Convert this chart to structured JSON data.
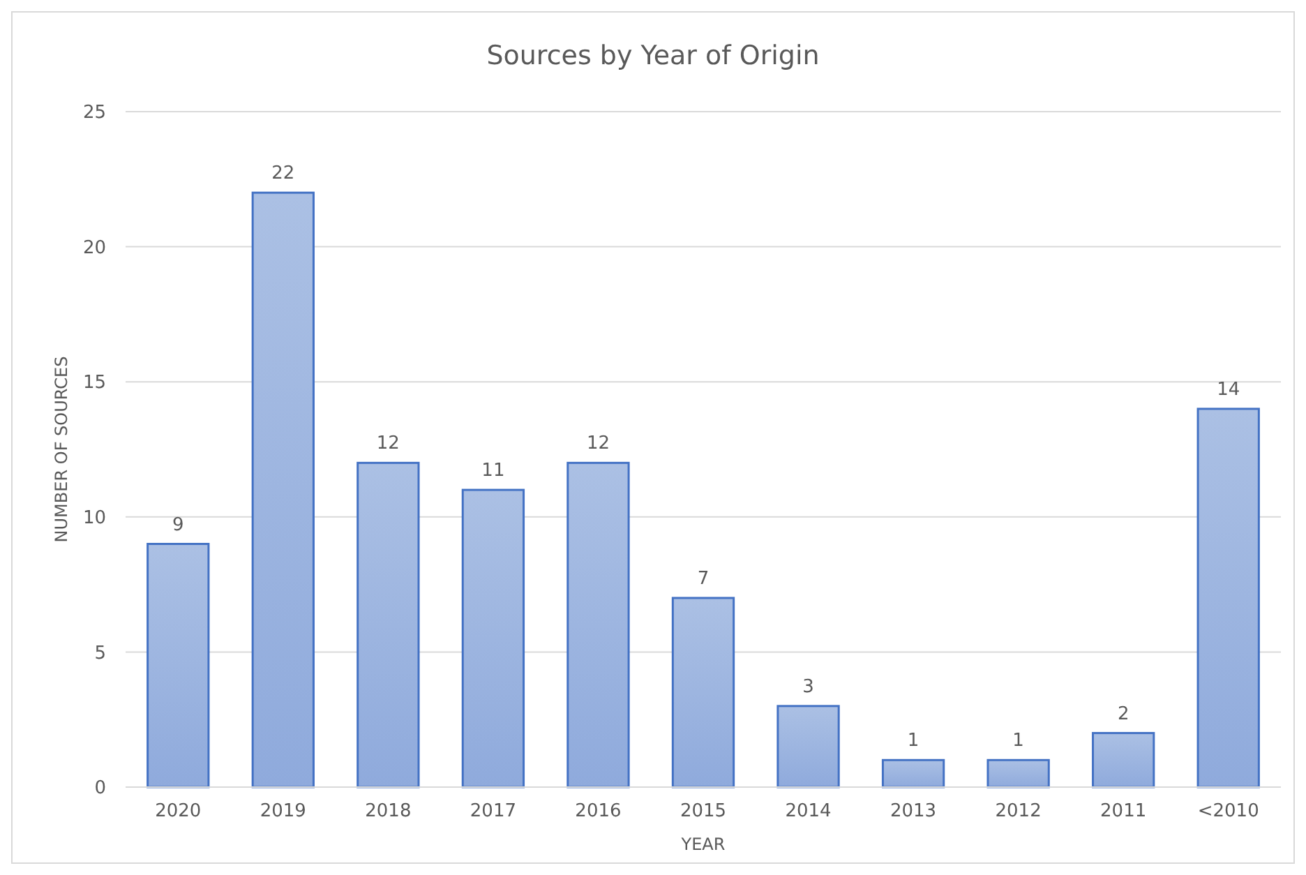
{
  "chart_data": {
    "type": "bar",
    "title": "Sources  by Year of Origin",
    "xlabel": "YEAR",
    "ylabel": "NUMBER OF SOURCES",
    "categories": [
      "2020",
      "2019",
      "2018",
      "2017",
      "2016",
      "2015",
      "2014",
      "2013",
      "2012",
      "2011",
      "<2010"
    ],
    "values": [
      9,
      22,
      12,
      11,
      12,
      7,
      3,
      1,
      1,
      2,
      14
    ],
    "color": "#4472c4",
    "ylim": [
      0,
      25
    ],
    "yticks": [
      0,
      5,
      10,
      15,
      20,
      25
    ],
    "grid": "y",
    "data_labels": true
  }
}
